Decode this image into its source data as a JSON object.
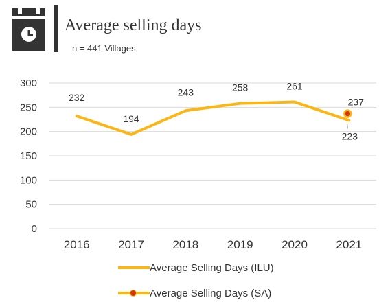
{
  "header": {
    "icon": "calendar-clock-icon",
    "title": "Average selling days",
    "subtitle": "n = 441 Villages"
  },
  "colors": {
    "ilu_line": "#FBB614",
    "sa_marker": "#D4380D",
    "grid": "#D9D9D9",
    "text": "#333333"
  },
  "chart_data": {
    "type": "line",
    "title": "Average selling days",
    "categories": [
      "2016",
      "2017",
      "2018",
      "2019",
      "2020",
      "2021"
    ],
    "y_ticks": [
      0,
      50,
      100,
      150,
      200,
      250,
      300
    ],
    "ylim": [
      0,
      300
    ],
    "grid": true,
    "legend_position": "bottom",
    "series": [
      {
        "name": "Average Selling Days (ILU)",
        "values": [
          232,
          194,
          243,
          258,
          261,
          223
        ],
        "labels": [
          "232",
          "194",
          "243",
          "258",
          "261",
          "223"
        ]
      },
      {
        "name": "Average Selling Days (SA)",
        "values": [
          null,
          null,
          null,
          null,
          null,
          237
        ],
        "labels": [
          "",
          "",
          "",
          "",
          "",
          "237"
        ]
      }
    ]
  },
  "legend": {
    "items": [
      "Average Selling Days (ILU)",
      "Average Selling Days (SA)"
    ]
  }
}
